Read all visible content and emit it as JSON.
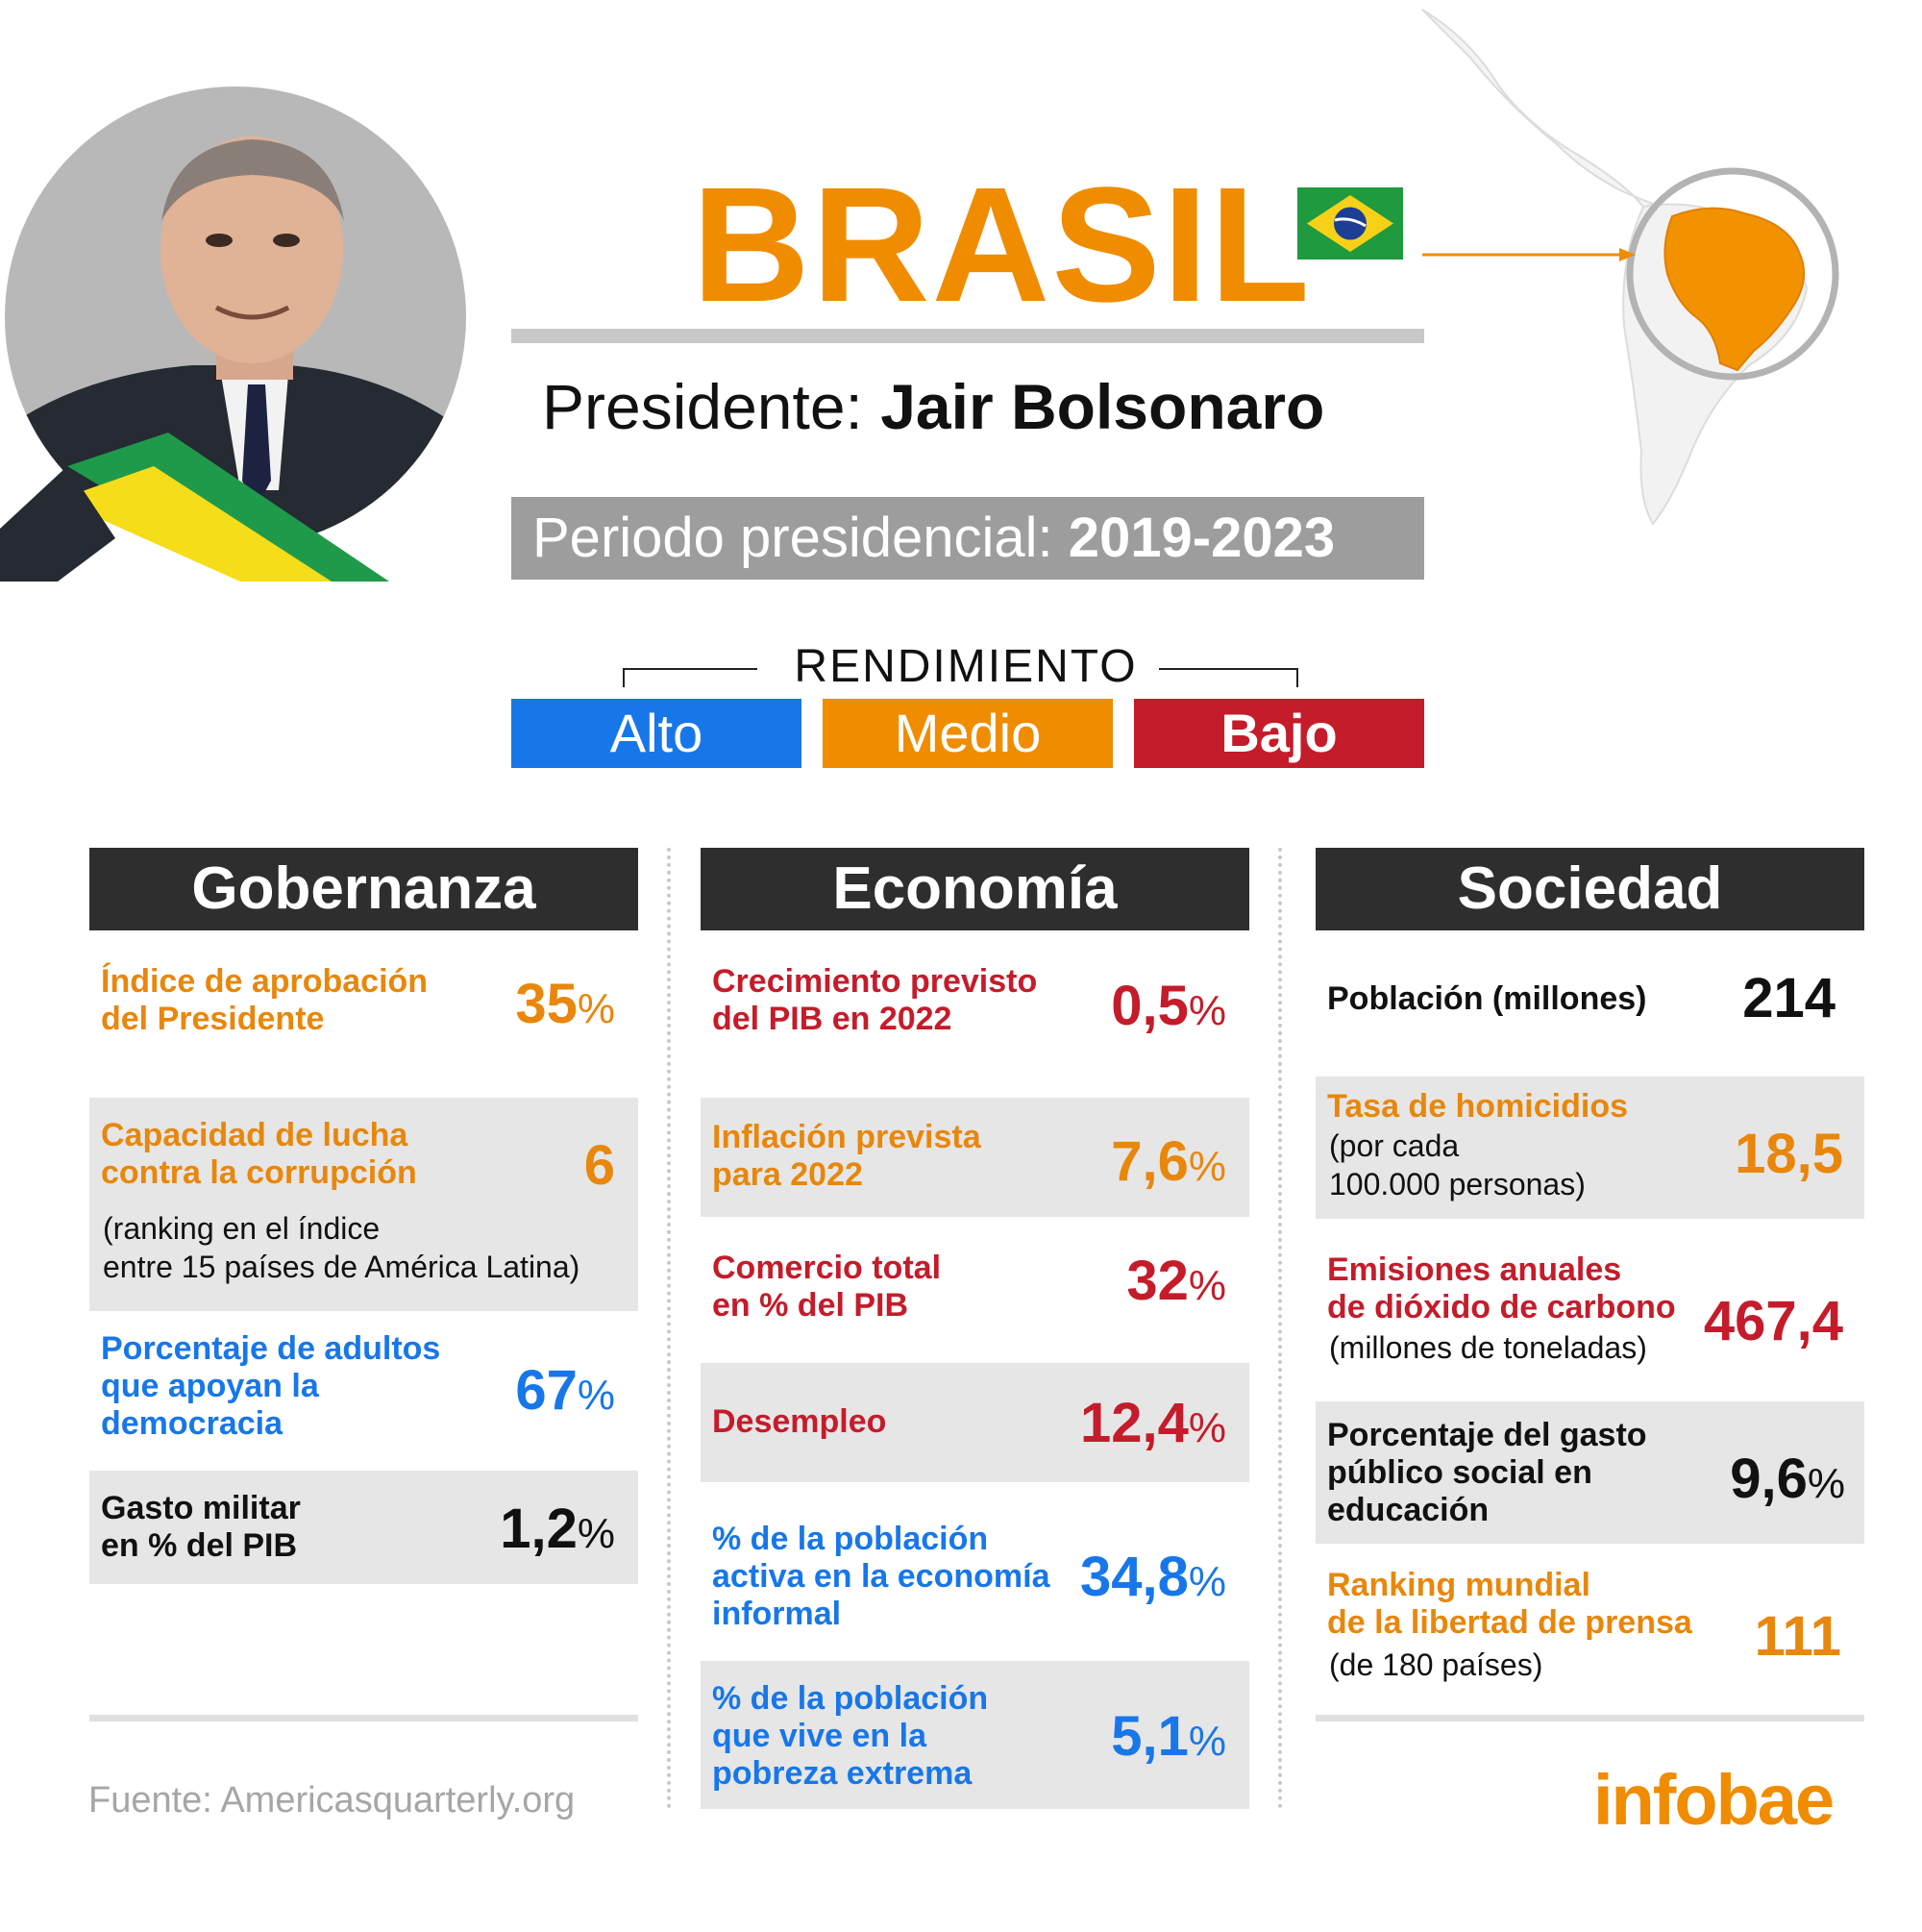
{
  "header": {
    "country": "BRASIL",
    "president_label": "Presidente:",
    "president_name": "Jair Bolsonaro",
    "period_label": "Periodo presidencial:",
    "period_value": "2019-2023"
  },
  "legend": {
    "title": "RENDIMIENTO",
    "alto": "Alto",
    "medio": "Medio",
    "bajo": "Bajo"
  },
  "colors": {
    "alto": "#1877e8",
    "medio": "#f08c00",
    "bajo": "#c41c2a",
    "header_bar": "#2e2e2e"
  },
  "gobernanza": {
    "title": "Gobernanza",
    "aprobacion": {
      "l1": "Índice de aprobación",
      "l2": "del Presidente",
      "value": "35",
      "unit": "%"
    },
    "corrupcion": {
      "l1": "Capacidad de lucha",
      "l2": "contra la corrupción",
      "value": "6",
      "s1": "(ranking en el índice",
      "s2": "entre 15 países de América Latina)"
    },
    "democracia": {
      "l1": "Porcentaje de adultos",
      "l2": "que apoyan la",
      "l3": "democracia",
      "value": "67",
      "unit": "%"
    },
    "militar": {
      "l1": "Gasto militar",
      "l2": "en % del PIB",
      "value": "1,2",
      "unit": "%"
    }
  },
  "economia": {
    "title": "Economía",
    "pib": {
      "l1": "Crecimiento previsto",
      "l2": "del PIB en 2022",
      "value": "0,5",
      "unit": "%"
    },
    "inflacion": {
      "l1": "Inflación prevista",
      "l2": "para 2022",
      "value": "7,6",
      "unit": "%"
    },
    "comercio": {
      "l1": "Comercio total",
      "l2": "en % del PIB",
      "value": "32",
      "unit": "%"
    },
    "desempleo": {
      "l1": "Desempleo",
      "value": "12,4",
      "unit": "%"
    },
    "informal": {
      "l1": "% de la población",
      "l2": "activa en la economía",
      "l3": "informal",
      "value": "34,8",
      "unit": "%"
    },
    "pobreza": {
      "l1": "% de la población",
      "l2": "que vive en la",
      "l3": "pobreza extrema",
      "value": "5,1",
      "unit": "%"
    }
  },
  "sociedad": {
    "title": "Sociedad",
    "poblacion": {
      "l1": "Población (millones)",
      "value": "214"
    },
    "homicidios": {
      "l1": "Tasa de homicidios",
      "s1": "(por cada",
      "s2": "100.000 personas)",
      "value": "18,5"
    },
    "emisiones": {
      "l1": "Emisiones anuales",
      "l2": "de dióxido de carbono",
      "s1": "(millones de toneladas)",
      "value": "467,4"
    },
    "educacion": {
      "l1": "Porcentaje del gasto",
      "l2": "público social en",
      "l3": "educación",
      "value": "9,6",
      "unit": "%"
    },
    "prensa": {
      "l1": "Ranking mundial",
      "l2": "de la libertad de prensa",
      "s1": "(de 180 países)",
      "value": "111"
    }
  },
  "footer": {
    "source": "Fuente: Americasquarterly.org",
    "brand": "infobae"
  }
}
